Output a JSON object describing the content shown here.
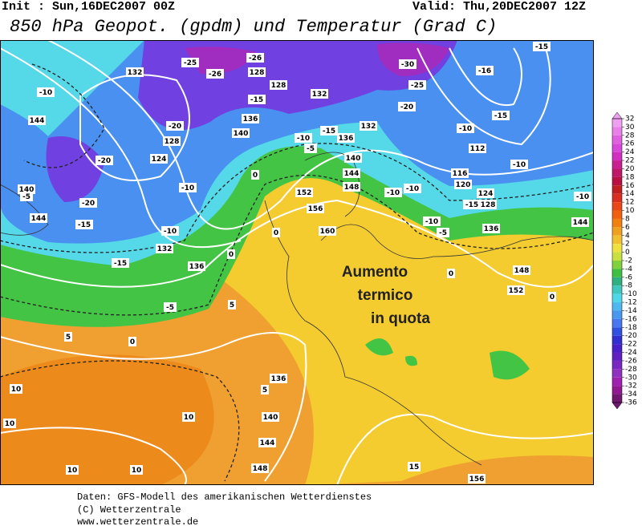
{
  "header": {
    "init": "Init : Sun,16DEC2007 00Z",
    "valid": "Valid: Thu,20DEC2007 12Z",
    "title": "850 hPa Geopot. (gpdm) und Temperatur (Grad C)"
  },
  "annotation": [
    "Aumento",
    "termico",
    "in quota"
  ],
  "contour_labels": [
    "132",
    "-25",
    "-26",
    "-26",
    "128",
    "128",
    "132",
    "-15",
    "-10",
    "144",
    "-20",
    "136",
    "140",
    "128",
    "124",
    "-20",
    "-10",
    "140",
    "-5",
    "-20",
    "144",
    "-15",
    "-10",
    "132",
    "-15",
    "136",
    "-5",
    "0",
    "5",
    "5",
    "5",
    "10",
    "10",
    "10",
    "10",
    "10",
    "136",
    "140",
    "144",
    "148",
    "15",
    "156",
    "152",
    "156",
    "160",
    "148",
    "144",
    "140",
    "136",
    "132",
    "-15",
    "-10",
    "-5",
    "0",
    "0",
    "0",
    "-5",
    "136",
    "148",
    "152",
    "144",
    "-10",
    "116",
    "120",
    "124",
    "128",
    "-10",
    "-10",
    "-15",
    "-10",
    "-10",
    "112",
    "-15",
    "-10",
    "-20",
    "-25",
    "-30",
    "-16",
    "-15",
    "0",
    "0"
  ],
  "colorbar": {
    "ticks": [
      32,
      30,
      28,
      26,
      24,
      22,
      20,
      18,
      16,
      14,
      12,
      10,
      8,
      6,
      4,
      2,
      0,
      -2,
      -4,
      -6,
      -8,
      -10,
      -12,
      -14,
      -16,
      -18,
      -20,
      -22,
      -24,
      -26,
      -28,
      -30,
      -32,
      -34,
      -36
    ],
    "colors": [
      "#f0a0f0",
      "#e880e8",
      "#e060e0",
      "#d848d8",
      "#d030c0",
      "#c82090",
      "#c01868",
      "#b81040",
      "#c02020",
      "#d83020",
      "#e84818",
      "#f06010",
      "#f08010",
      "#f0a020",
      "#f0c030",
      "#f0e040",
      "#c8e040",
      "#80d040",
      "#40c040",
      "#30b080",
      "#40c8c0",
      "#50d8e8",
      "#50b8f0",
      "#4898f0",
      "#4878f0",
      "#3050e0",
      "#3030d0",
      "#4820c8",
      "#6020c0",
      "#7828c0",
      "#9030c0",
      "#a020b0",
      "#901890",
      "#701870"
    ]
  },
  "footer": [
    "Daten: GFS-Modell des amerikanischen Wetterdienstes",
    "(C) Wetterzentrale",
    "www.wetterzentrale.de"
  ]
}
